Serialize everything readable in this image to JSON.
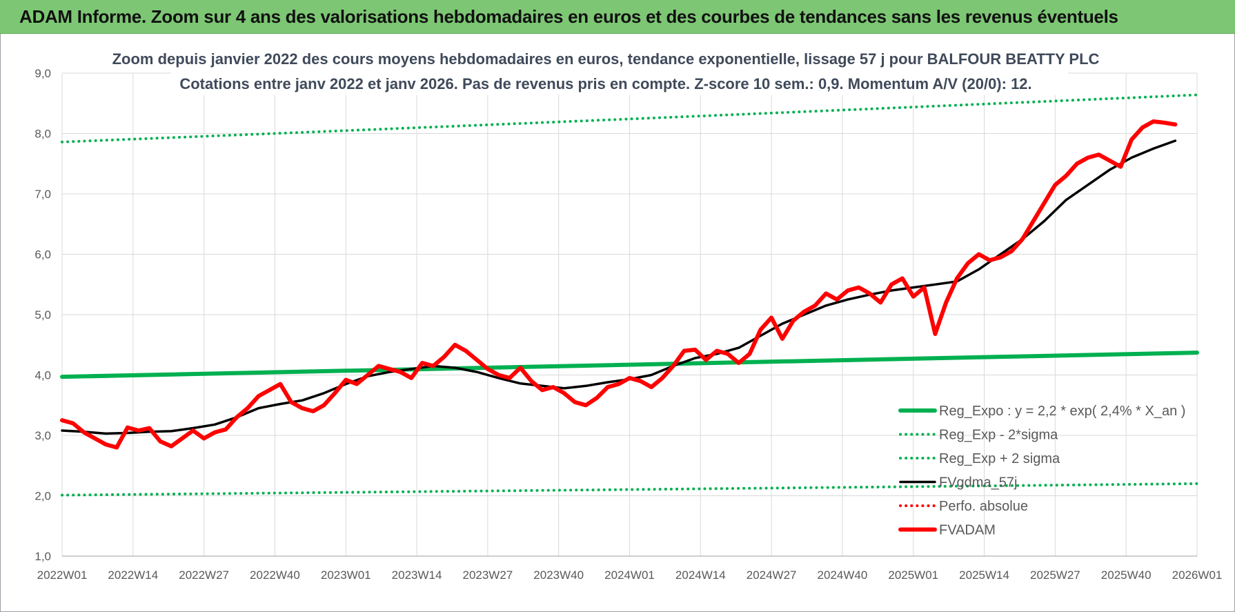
{
  "banner": {
    "title": "ADAM Informe. Zoom sur 4 ans des valorisations hebdomadaires en euros et des courbes de tendances sans les revenus éventuels"
  },
  "colors": {
    "banner_bg": "#7dc774",
    "reg_green": "#00b050",
    "fvgdma": "#000000",
    "fvadam": "#ff0000",
    "perfo": "#ff0000",
    "grid": "#d9d9d9"
  },
  "chart_data": {
    "type": "line",
    "title": "Zoom depuis janvier 2022 des cours moyens hebdomadaires en euros, tendance exponentielle, lissage 57 j pour BALFOUR BEATTY PLC",
    "subtitle": "Cotations entre janv 2022 et janv 2026. Pas de revenus pris en compte. Z-score 10 sem.: 0,9. Momentum A/V (20/0): 12.",
    "xlabel": "",
    "ylabel": "",
    "x_ticks": [
      "2022W01",
      "2022W14",
      "2022W27",
      "2022W40",
      "2023W01",
      "2023W14",
      "2023W27",
      "2023W40",
      "2024W01",
      "2024W14",
      "2024W27",
      "2024W40",
      "2025W01",
      "2025W14",
      "2025W27",
      "2025W40",
      "2026W01"
    ],
    "y_ticks": [
      "1,0",
      "2,0",
      "3,0",
      "4,0",
      "5,0",
      "6,0",
      "7,0",
      "8,0",
      "9,0"
    ],
    "ylim": [
      1.0,
      9.0
    ],
    "grid": true,
    "legend_position": "bottom-right",
    "x_unit_note_weeks_per_tick": 13,
    "series": [
      {
        "name": "Reg_Expo : y = 2,2 * exp( 2,4% *  X_an )",
        "style": "solid-thick",
        "color": "#00b050",
        "points": [
          [
            0,
            3.97
          ],
          [
            208,
            4.37
          ]
        ]
      },
      {
        "name": "Reg_Exp - 2*sigma",
        "style": "dotted",
        "color": "#00b050",
        "points": [
          [
            0,
            2.01
          ],
          [
            208,
            2.2
          ]
        ]
      },
      {
        "name": "Reg_Exp + 2 sigma",
        "style": "dotted",
        "color": "#00b050",
        "points": [
          [
            0,
            7.86
          ],
          [
            208,
            8.64
          ]
        ]
      },
      {
        "name": "FVgdma_57j",
        "style": "solid",
        "color": "#000000",
        "points": [
          [
            0,
            3.08
          ],
          [
            4,
            3.06
          ],
          [
            8,
            3.03
          ],
          [
            12,
            3.04
          ],
          [
            16,
            3.06
          ],
          [
            20,
            3.07
          ],
          [
            24,
            3.12
          ],
          [
            28,
            3.18
          ],
          [
            32,
            3.3
          ],
          [
            36,
            3.45
          ],
          [
            40,
            3.52
          ],
          [
            44,
            3.58
          ],
          [
            48,
            3.7
          ],
          [
            52,
            3.85
          ],
          [
            56,
            3.98
          ],
          [
            60,
            4.05
          ],
          [
            64,
            4.1
          ],
          [
            68,
            4.15
          ],
          [
            72,
            4.12
          ],
          [
            76,
            4.05
          ],
          [
            80,
            3.95
          ],
          [
            84,
            3.86
          ],
          [
            88,
            3.82
          ],
          [
            92,
            3.78
          ],
          [
            96,
            3.82
          ],
          [
            100,
            3.88
          ],
          [
            104,
            3.93
          ],
          [
            108,
            4.0
          ],
          [
            112,
            4.15
          ],
          [
            116,
            4.28
          ],
          [
            120,
            4.35
          ],
          [
            124,
            4.45
          ],
          [
            128,
            4.65
          ],
          [
            132,
            4.85
          ],
          [
            136,
            5.0
          ],
          [
            140,
            5.15
          ],
          [
            144,
            5.25
          ],
          [
            148,
            5.33
          ],
          [
            152,
            5.4
          ],
          [
            156,
            5.45
          ],
          [
            160,
            5.5
          ],
          [
            164,
            5.55
          ],
          [
            168,
            5.75
          ],
          [
            172,
            6.0
          ],
          [
            176,
            6.25
          ],
          [
            180,
            6.55
          ],
          [
            184,
            6.9
          ],
          [
            188,
            7.15
          ],
          [
            192,
            7.4
          ],
          [
            196,
            7.6
          ],
          [
            200,
            7.75
          ],
          [
            204,
            7.88
          ]
        ]
      },
      {
        "name": "Perfo. absolue",
        "style": "dotted",
        "color": "#ff0000",
        "points": []
      },
      {
        "name": "FVADAM",
        "style": "solid-thick",
        "color": "#ff0000",
        "points": [
          [
            0,
            3.25
          ],
          [
            2,
            3.2
          ],
          [
            4,
            3.05
          ],
          [
            6,
            2.95
          ],
          [
            8,
            2.85
          ],
          [
            10,
            2.8
          ],
          [
            12,
            3.13
          ],
          [
            14,
            3.08
          ],
          [
            16,
            3.12
          ],
          [
            18,
            2.9
          ],
          [
            20,
            2.82
          ],
          [
            22,
            2.95
          ],
          [
            24,
            3.08
          ],
          [
            26,
            2.95
          ],
          [
            28,
            3.05
          ],
          [
            30,
            3.1
          ],
          [
            32,
            3.3
          ],
          [
            34,
            3.45
          ],
          [
            36,
            3.65
          ],
          [
            38,
            3.75
          ],
          [
            40,
            3.85
          ],
          [
            42,
            3.55
          ],
          [
            44,
            3.45
          ],
          [
            46,
            3.4
          ],
          [
            48,
            3.5
          ],
          [
            50,
            3.7
          ],
          [
            52,
            3.92
          ],
          [
            54,
            3.85
          ],
          [
            56,
            4.0
          ],
          [
            58,
            4.15
          ],
          [
            60,
            4.1
          ],
          [
            62,
            4.05
          ],
          [
            64,
            3.95
          ],
          [
            66,
            4.2
          ],
          [
            68,
            4.15
          ],
          [
            70,
            4.3
          ],
          [
            72,
            4.5
          ],
          [
            74,
            4.4
          ],
          [
            76,
            4.25
          ],
          [
            78,
            4.1
          ],
          [
            80,
            4.0
          ],
          [
            82,
            3.95
          ],
          [
            84,
            4.12
          ],
          [
            86,
            3.9
          ],
          [
            88,
            3.75
          ],
          [
            90,
            3.8
          ],
          [
            92,
            3.7
          ],
          [
            94,
            3.55
          ],
          [
            96,
            3.5
          ],
          [
            98,
            3.62
          ],
          [
            100,
            3.8
          ],
          [
            102,
            3.85
          ],
          [
            104,
            3.95
          ],
          [
            106,
            3.9
          ],
          [
            108,
            3.8
          ],
          [
            110,
            3.95
          ],
          [
            112,
            4.15
          ],
          [
            114,
            4.4
          ],
          [
            116,
            4.42
          ],
          [
            118,
            4.25
          ],
          [
            120,
            4.4
          ],
          [
            122,
            4.35
          ],
          [
            124,
            4.2
          ],
          [
            126,
            4.35
          ],
          [
            128,
            4.75
          ],
          [
            130,
            4.95
          ],
          [
            132,
            4.6
          ],
          [
            134,
            4.9
          ],
          [
            136,
            5.05
          ],
          [
            138,
            5.15
          ],
          [
            140,
            5.35
          ],
          [
            142,
            5.25
          ],
          [
            144,
            5.4
          ],
          [
            146,
            5.45
          ],
          [
            148,
            5.35
          ],
          [
            150,
            5.2
          ],
          [
            152,
            5.5
          ],
          [
            154,
            5.6
          ],
          [
            156,
            5.3
          ],
          [
            158,
            5.45
          ],
          [
            160,
            4.68
          ],
          [
            162,
            5.2
          ],
          [
            164,
            5.6
          ],
          [
            166,
            5.85
          ],
          [
            168,
            6.0
          ],
          [
            170,
            5.9
          ],
          [
            172,
            5.95
          ],
          [
            174,
            6.05
          ],
          [
            176,
            6.25
          ],
          [
            178,
            6.55
          ],
          [
            180,
            6.85
          ],
          [
            182,
            7.15
          ],
          [
            184,
            7.3
          ],
          [
            186,
            7.5
          ],
          [
            188,
            7.6
          ],
          [
            190,
            7.65
          ],
          [
            192,
            7.55
          ],
          [
            194,
            7.45
          ],
          [
            196,
            7.9
          ],
          [
            198,
            8.1
          ],
          [
            200,
            8.2
          ],
          [
            202,
            8.18
          ],
          [
            204,
            8.15
          ]
        ]
      }
    ]
  }
}
